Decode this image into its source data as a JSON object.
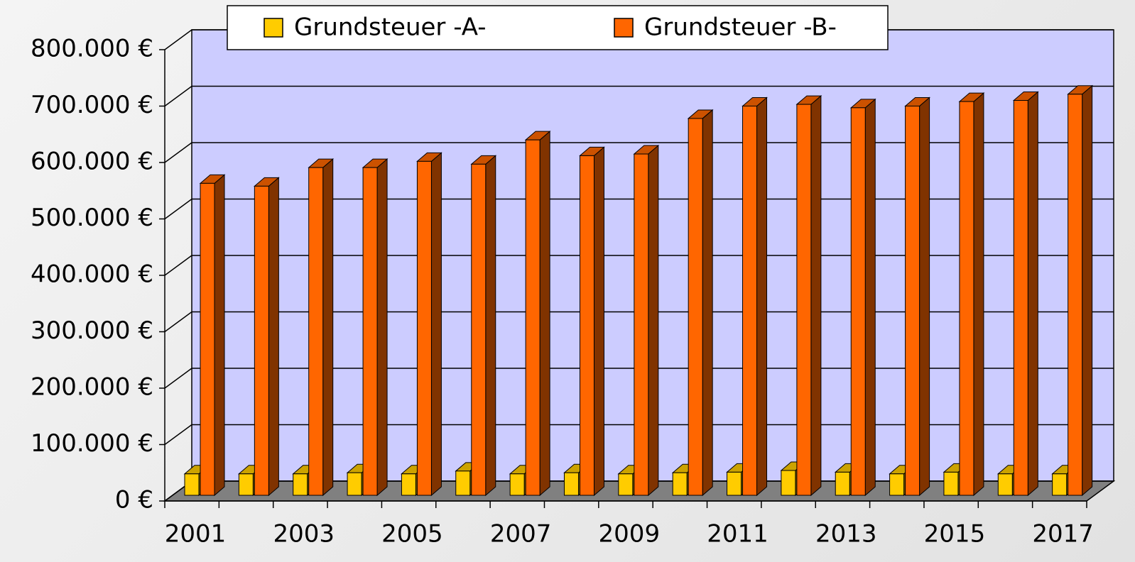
{
  "chart_data": {
    "type": "bar3d",
    "categories": [
      "2001",
      null,
      "2003",
      null,
      "2005",
      null,
      "2007",
      null,
      "2009",
      null,
      "2011",
      null,
      "2013",
      null,
      "2015",
      null,
      "2017"
    ],
    "series": [
      {
        "name": "Grundsteuer -A-",
        "color": "#ffcc00",
        "values": [
          38000,
          38000,
          38000,
          40000,
          38000,
          43000,
          38000,
          40000,
          38000,
          40000,
          41000,
          44000,
          41000,
          38000,
          41000,
          38000,
          38000
        ]
      },
      {
        "name": "Grundsteuer -B-",
        "color": "#ff6600",
        "values": [
          553000,
          548000,
          581000,
          581000,
          592000,
          587000,
          630000,
          602000,
          605000,
          668000,
          690000,
          693000,
          687000,
          690000,
          698000,
          700000,
          711000
        ]
      }
    ],
    "ylim": [
      0,
      800000
    ],
    "yticks": [
      {
        "value": 0,
        "label": "0 €"
      },
      {
        "value": 100000,
        "label": "100.000 €"
      },
      {
        "value": 200000,
        "label": "200.000 €"
      },
      {
        "value": 300000,
        "label": "300.000 €"
      },
      {
        "value": 400000,
        "label": "400.000 €"
      },
      {
        "value": 500000,
        "label": "500.000 €"
      },
      {
        "value": 600000,
        "label": "600.000 €"
      },
      {
        "value": 700000,
        "label": "700.000 €"
      },
      {
        "value": 800000,
        "label": "800.000 €"
      }
    ],
    "grid": true
  }
}
